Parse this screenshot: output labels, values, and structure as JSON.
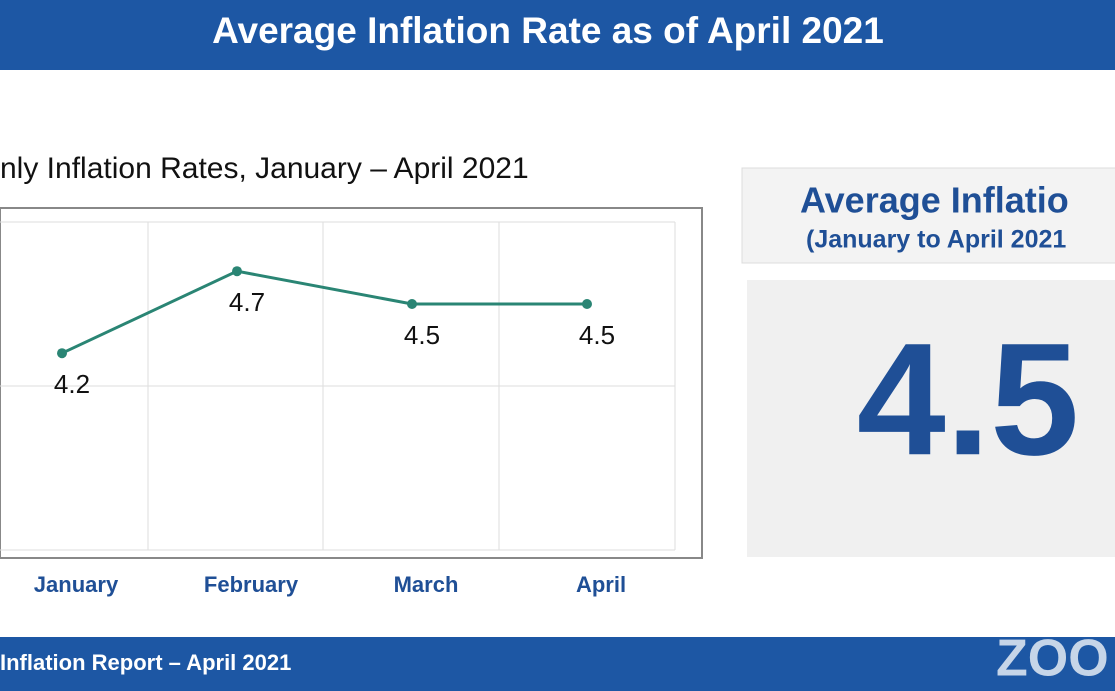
{
  "header": {
    "title": "Average Inflation Rate as of April 2021"
  },
  "chart_data": {
    "type": "line",
    "title": "nly Inflation Rates, January – April 2021",
    "categories": [
      "January",
      "February",
      "March",
      "April"
    ],
    "values": [
      4.2,
      4.7,
      4.5,
      4.5
    ],
    "color": "#2a8574",
    "ylim": [
      3,
      5
    ]
  },
  "panel": {
    "title": "Average Inflatio",
    "subtitle": "(January to April 2021",
    "value": "4.5"
  },
  "footer": {
    "text": "Inflation Report – April 2021"
  },
  "watermark": "ZOO"
}
